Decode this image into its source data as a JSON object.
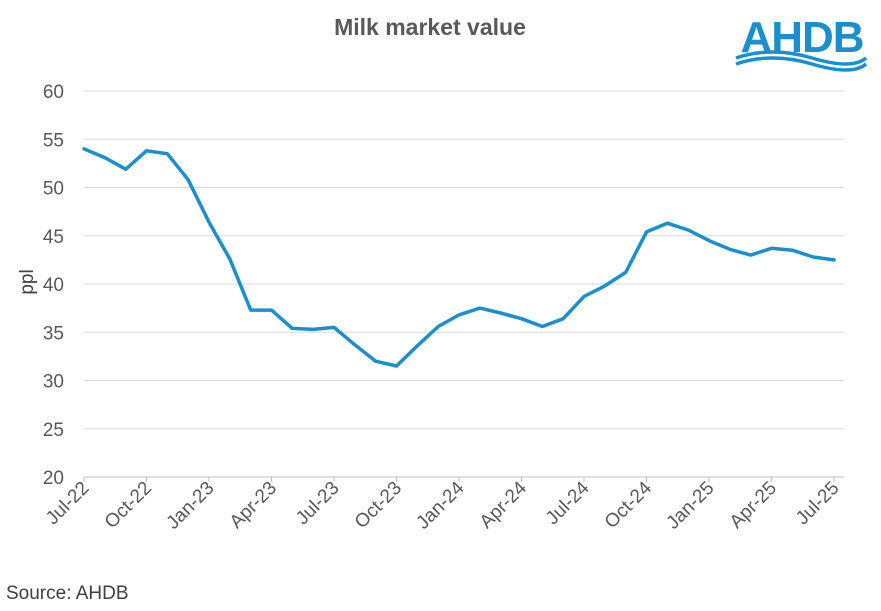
{
  "chart_data": {
    "type": "line",
    "title": "Milk market value",
    "xlabel": "",
    "ylabel": "ppl",
    "ylim": [
      20,
      60
    ],
    "yticks": [
      20,
      25,
      30,
      35,
      40,
      45,
      50,
      55,
      60
    ],
    "grid": true,
    "x": [
      "Jul-22",
      "Aug-22",
      "Sep-22",
      "Oct-22",
      "Nov-22",
      "Dec-22",
      "Jan-23",
      "Feb-23",
      "Mar-23",
      "Apr-23",
      "May-23",
      "Jun-23",
      "Jul-23",
      "Aug-23",
      "Sep-23",
      "Oct-23",
      "Nov-23",
      "Dec-23",
      "Jan-24",
      "Feb-24",
      "Mar-24",
      "Apr-24",
      "May-24",
      "Jun-24",
      "Jul-24",
      "Aug-24",
      "Sep-24",
      "Oct-24",
      "Nov-24",
      "Dec-24",
      "Jan-25",
      "Feb-25",
      "Mar-25",
      "Apr-25",
      "May-25",
      "Jun-25",
      "Jul-25"
    ],
    "xtick_labels": [
      "Jul-22",
      "Oct-22",
      "Jan-23",
      "Apr-23",
      "Jul-23",
      "Oct-23",
      "Jan-24",
      "Apr-24",
      "Jul-24",
      "Oct-24",
      "Jan-25",
      "Apr-25",
      "Jul-25"
    ],
    "series": [
      {
        "values": [
          54.0,
          53.1,
          51.9,
          53.8,
          53.5,
          50.8,
          46.4,
          42.6,
          37.3,
          37.3,
          35.4,
          35.3,
          35.5,
          33.7,
          32.0,
          31.5,
          33.6,
          35.6,
          36.8,
          37.5,
          37.0,
          36.4,
          35.6,
          36.4,
          38.7,
          39.8,
          41.2,
          45.4,
          46.3,
          45.6,
          44.5,
          43.6,
          43.0,
          43.7,
          43.5,
          42.8,
          42.5
        ]
      }
    ],
    "line_color": "#1A8FCD"
  },
  "logo": {
    "text": "AHDB",
    "color": "#1A8FCD"
  },
  "source": "Source: AHDB"
}
